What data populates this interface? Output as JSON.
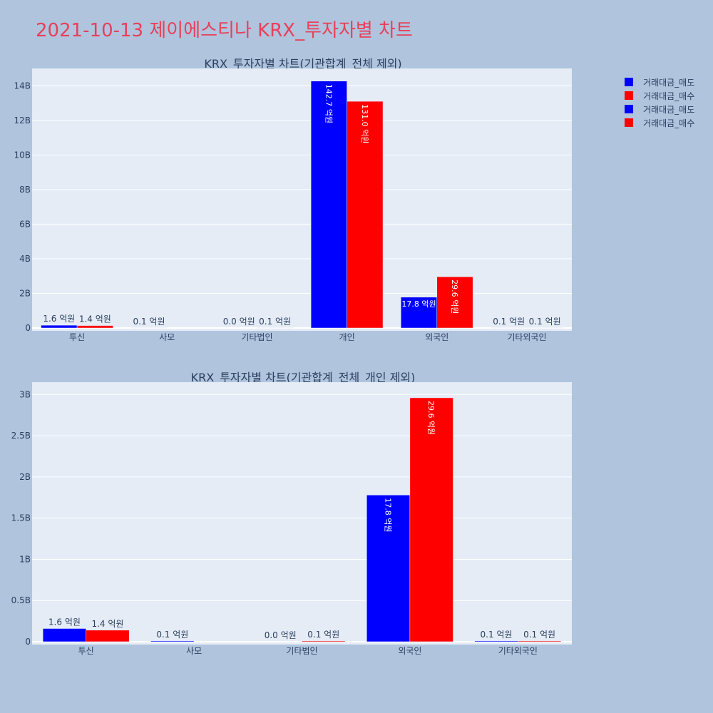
{
  "title": "2021-10-13 제이에스티나 KRX_투자자별 차트",
  "legend": [
    {
      "name": "거래대금_매도",
      "color": "#0000ff"
    },
    {
      "name": "거래대금_매수",
      "color": "#ff0000"
    },
    {
      "name": "거래대금_매도",
      "color": "#0000ff"
    },
    {
      "name": "거래대금_매수",
      "color": "#ff0000"
    }
  ],
  "chart_data": [
    {
      "type": "bar",
      "title": "KRX_투자자별 차트(기관합계_전체 제외)",
      "categories": [
        "투신",
        "사모",
        "기타법인",
        "개인",
        "외국인",
        "기타외국인"
      ],
      "series": [
        {
          "name": "거래대금_매도",
          "color": "#0000ff",
          "values": [
            160000000,
            10000000,
            0,
            14270000000,
            1780000000,
            10000000
          ],
          "labels": [
            "1.6 억원",
            "0.1 억원",
            "0.0 억원",
            "142.7 억원",
            "17.8 억원",
            "0.1 억원"
          ]
        },
        {
          "name": "거래대금_매수",
          "color": "#ff0000",
          "values": [
            140000000,
            0,
            10000000,
            13100000000,
            2960000000,
            10000000
          ],
          "labels": [
            "1.4 억원",
            "",
            "0.1 억원",
            "131.0 억원",
            "29.6 억원",
            "0.1 억원"
          ]
        }
      ],
      "ylim": [
        0,
        15000000000
      ],
      "yticks": [
        {
          "value": 0,
          "label": "0"
        },
        {
          "value": 2000000000,
          "label": "2B"
        },
        {
          "value": 4000000000,
          "label": "4B"
        },
        {
          "value": 6000000000,
          "label": "6B"
        },
        {
          "value": 8000000000,
          "label": "8B"
        },
        {
          "value": 10000000000,
          "label": "10B"
        },
        {
          "value": 12000000000,
          "label": "12B"
        },
        {
          "value": 14000000000,
          "label": "14B"
        }
      ],
      "grid": true
    },
    {
      "type": "bar",
      "title": "KRX_투자자별 차트(기관합계_전체_개인 제외)",
      "categories": [
        "투신",
        "사모",
        "기타법인",
        "외국인",
        "기타외국인"
      ],
      "series": [
        {
          "name": "거래대금_매도",
          "color": "#0000ff",
          "values": [
            160000000,
            10000000,
            0,
            1780000000,
            10000000
          ],
          "labels": [
            "1.6 억원",
            "0.1 억원",
            "0.0 억원",
            "17.8 억원",
            "0.1 억원"
          ]
        },
        {
          "name": "거래대금_매수",
          "color": "#ff0000",
          "values": [
            140000000,
            0,
            10000000,
            2960000000,
            10000000
          ],
          "labels": [
            "1.4 억원",
            "",
            "0.1 억원",
            "29.6 억원",
            "0.1 억원"
          ]
        }
      ],
      "ylim": [
        0,
        3150000000
      ],
      "yticks": [
        {
          "value": 0,
          "label": "0"
        },
        {
          "value": 500000000,
          "label": "0.5B"
        },
        {
          "value": 1000000000,
          "label": "1B"
        },
        {
          "value": 1500000000,
          "label": "1.5B"
        },
        {
          "value": 2000000000,
          "label": "2B"
        },
        {
          "value": 2500000000,
          "label": "2.5B"
        },
        {
          "value": 3000000000,
          "label": "3B"
        }
      ],
      "grid": true
    }
  ]
}
